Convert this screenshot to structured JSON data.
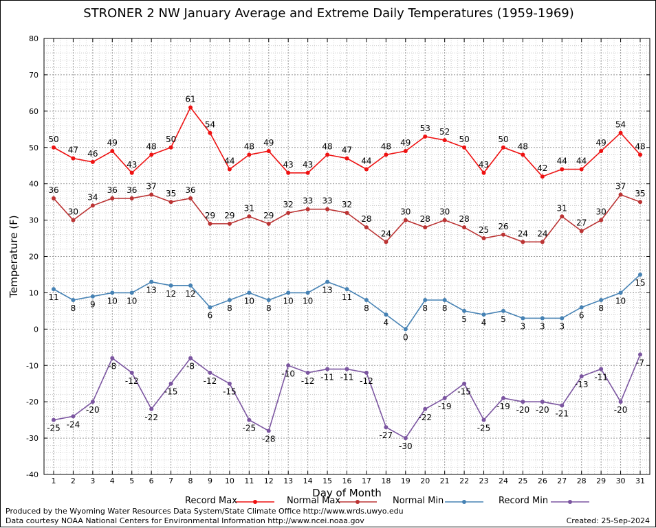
{
  "chart_data": {
    "type": "line",
    "title": "STRONER 2 NW January Average and Extreme Daily Temperatures (1959-1969)",
    "xlabel": "Day of Month",
    "ylabel": "Temperature (F)",
    "x": [
      1,
      2,
      3,
      4,
      5,
      6,
      7,
      8,
      9,
      10,
      11,
      12,
      13,
      14,
      15,
      16,
      17,
      18,
      19,
      20,
      21,
      22,
      23,
      24,
      25,
      26,
      27,
      28,
      29,
      30,
      31
    ],
    "ylim": [
      -40,
      80
    ],
    "yticks": [
      -40,
      -30,
      -20,
      -10,
      0,
      10,
      20,
      30,
      40,
      50,
      60,
      70,
      80
    ],
    "grid": true,
    "legend_position": "bottom",
    "series": [
      {
        "name": "Record Max",
        "color": "#ee1111",
        "label_pos": "above",
        "values": [
          50,
          47,
          46,
          49,
          43,
          48,
          50,
          61,
          54,
          44,
          48,
          49,
          43,
          43,
          48,
          47,
          44,
          48,
          49,
          53,
          52,
          50,
          43,
          50,
          48,
          42,
          44,
          44,
          49,
          54,
          48
        ]
      },
      {
        "name": "Normal Max",
        "color": "#bb3333",
        "label_pos": "above",
        "values": [
          36,
          30,
          34,
          36,
          36,
          37,
          35,
          36,
          29,
          29,
          31,
          29,
          32,
          33,
          33,
          32,
          28,
          24,
          30,
          28,
          30,
          28,
          25,
          26,
          24,
          24,
          31,
          27,
          30,
          37,
          35
        ]
      },
      {
        "name": "Normal Min",
        "color": "#4682b4",
        "label_pos": "below",
        "values": [
          11,
          8,
          9,
          10,
          10,
          13,
          12,
          12,
          6,
          8,
          10,
          8,
          10,
          10,
          13,
          11,
          8,
          4,
          0,
          8,
          8,
          5,
          4,
          5,
          3,
          3,
          3,
          6,
          8,
          10,
          15
        ]
      },
      {
        "name": "Record Min",
        "color": "#7b55a0",
        "label_pos": "below",
        "values": [
          -25,
          -24,
          -20,
          -8,
          -12,
          -22,
          -15,
          -8,
          -12,
          -15,
          -25,
          -28,
          -10,
          -12,
          -11,
          -11,
          -12,
          -27,
          -30,
          -22,
          -19,
          -15,
          -25,
          -19,
          -20,
          -20,
          -21,
          -13,
          -11,
          -20,
          -7
        ]
      }
    ]
  },
  "footer": {
    "produced_by": "Produced by the Wyoming Water Resources Data System/State Climate Office http://www.wrds.uwyo.edu",
    "courtesy": "Data courtesy NOAA National Centers for Environmental Information http://www.ncei.noaa.gov",
    "created": "Created:  25-Sep-2024"
  }
}
